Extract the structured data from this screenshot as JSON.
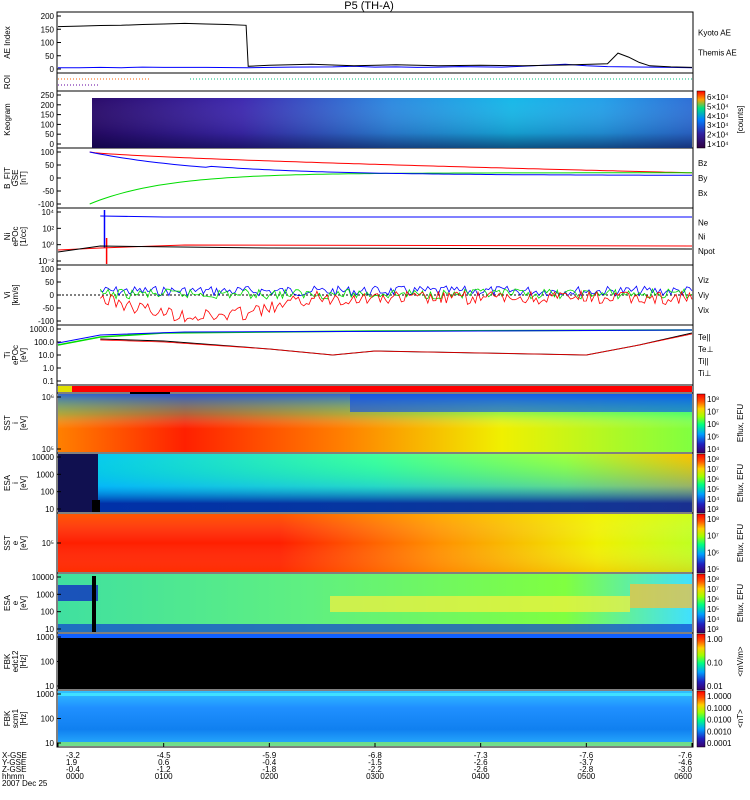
{
  "title": "P5 (TH-A)",
  "colors": {
    "red": "#ff0000",
    "green": "#00dd00",
    "blue": "#0000ff",
    "black": "#000000",
    "orange": "#ff8800"
  },
  "chart_data": [
    {
      "type": "line",
      "panel": "ae",
      "ylabel": "AE Index",
      "yticks": [
        "200",
        "150",
        "100",
        "50",
        "0"
      ],
      "series": [
        {
          "name": "Kyoto AE",
          "color": "#0000ff",
          "x": [
            0,
            2,
            4,
            6,
            8,
            10,
            14,
            18,
            22,
            26,
            28,
            30,
            32,
            34,
            36,
            38,
            40,
            42,
            44,
            46,
            48,
            50,
            52,
            54,
            56,
            58,
            60
          ],
          "values": [
            5,
            5,
            6,
            5,
            7,
            6,
            6,
            5,
            7,
            8,
            10,
            7,
            8,
            6,
            7,
            9,
            8,
            7,
            10,
            14,
            18,
            12,
            9,
            8,
            7,
            6,
            5
          ]
        },
        {
          "name": "Themis AE",
          "color": "#000000",
          "x": [
            0,
            2,
            4,
            6,
            8,
            10,
            12,
            14,
            16,
            17.8,
            18,
            20,
            24,
            28,
            32,
            36,
            40,
            44,
            48,
            52,
            53,
            54,
            55,
            56,
            58,
            60
          ],
          "values": [
            160,
            162,
            164,
            165,
            168,
            170,
            172,
            170,
            168,
            165,
            10,
            14,
            18,
            12,
            16,
            12,
            14,
            12,
            15,
            20,
            60,
            45,
            25,
            12,
            8,
            6
          ]
        }
      ]
    },
    {
      "type": "line",
      "panel": "roi",
      "ylabel": "ROI"
    },
    {
      "type": "heatmap",
      "panel": "keogram",
      "ylabel": "Keogram",
      "yticks": [
        "250",
        "200",
        "150",
        "100",
        "50",
        "0"
      ],
      "colorbar": [
        "6×10⁴",
        "5×10⁴",
        "4×10⁴",
        "3×10⁴",
        "2×10⁴",
        "1×10⁴"
      ],
      "unit": "[counts]"
    },
    {
      "type": "line",
      "panel": "bfit",
      "ylabel": "B_FIT",
      "ylabel2": "GSE",
      "ylabel3": "[nT]",
      "yticks": [
        "100",
        "50",
        "0",
        "-50",
        "-100"
      ],
      "series": [
        {
          "name": "Bz",
          "color": "#ff0000"
        },
        {
          "name": "By",
          "color": "#00dd00"
        },
        {
          "name": "Bx",
          "color": "#0000ff"
        }
      ]
    },
    {
      "type": "line",
      "panel": "ni",
      "ylabel": "Ni",
      "ylabel2": "ePOc",
      "ylabel3": "[1/cc]",
      "yticks": [
        "10⁴",
        "10²",
        "10⁰",
        "10⁻²"
      ],
      "series": [
        {
          "name": "Ne",
          "color": "#ff0000"
        },
        {
          "name": "Ni",
          "color": "#000000"
        },
        {
          "name": "Npot",
          "color": "#0000ff"
        }
      ]
    },
    {
      "type": "line",
      "panel": "vi",
      "ylabel": "Vi",
      "ylabel3": "[km/s]",
      "yticks": [
        "100",
        "50",
        "0",
        "-50",
        "-100"
      ],
      "series": [
        {
          "name": "Viz",
          "color": "#ff0000"
        },
        {
          "name": "Viy",
          "color": "#00dd00"
        },
        {
          "name": "Vix",
          "color": "#0000ff"
        }
      ]
    },
    {
      "type": "line",
      "panel": "ti",
      "ylabel": "Ti",
      "ylabel2": "ePOc",
      "ylabel3": "[eV]",
      "yticks": [
        "1000.0",
        "100.0",
        "10.0",
        "1.0",
        "0.1"
      ],
      "series": [
        {
          "name": "Te||",
          "color": "#000000"
        },
        {
          "name": "Te⊥",
          "color": "#ff0000"
        },
        {
          "name": "Ti||",
          "color": "#00dd00"
        },
        {
          "name": "Ti⊥",
          "color": "#0000ff"
        }
      ]
    },
    {
      "type": "heatmap",
      "panel": "sst_i",
      "ylabel": "SST",
      "ylabel2": "i",
      "ylabel3": "[eV]",
      "yticks": [
        "10⁶",
        "10⁵"
      ],
      "colorbar": [
        "10⁸",
        "10⁷",
        "10⁶",
        "10⁵",
        "10⁴"
      ],
      "unit": "Eflux, EFU"
    },
    {
      "type": "heatmap",
      "panel": "esa_i",
      "ylabel": "ESA",
      "ylabel2": "i",
      "ylabel3": "[eV]",
      "yticks": [
        "10000",
        "1000",
        "100",
        "10"
      ],
      "colorbar": [
        "10⁸",
        "10⁷",
        "10⁶",
        "10⁵",
        "10⁴",
        "10³"
      ],
      "unit": "Eflux, EFU"
    },
    {
      "type": "heatmap",
      "panel": "sst_e",
      "ylabel": "SST",
      "ylabel2": "e",
      "ylabel3": "[eV]",
      "yticks": [
        "10⁵"
      ],
      "colorbar": [
        "10⁸",
        "10⁷",
        "10⁶",
        "10⁵"
      ],
      "unit": "Eflux, EFU"
    },
    {
      "type": "heatmap",
      "panel": "esa_e",
      "ylabel": "ESA",
      "ylabel2": "e",
      "ylabel3": "[eV]",
      "yticks": [
        "10000",
        "1000",
        "100",
        "10"
      ],
      "colorbar": [
        "10⁸",
        "10⁷",
        "10⁶",
        "10⁵",
        "10⁴",
        "10³"
      ],
      "unit": "Eflux, EFU"
    },
    {
      "type": "heatmap",
      "panel": "fbk1",
      "ylabel": "FBK",
      "ylabel2": "edc12",
      "ylabel3": "[Hz]",
      "yticks": [
        "1000",
        "100",
        "10"
      ],
      "colorbar": [
        "1.00",
        "0.10",
        "0.01"
      ],
      "unit": "<mV/m>"
    },
    {
      "type": "heatmap",
      "panel": "fbk2",
      "ylabel": "FBK",
      "ylabel2": "scm1",
      "ylabel3": "[Hz]",
      "yticks": [
        "1000",
        "100",
        "10"
      ],
      "colorbar": [
        "1.0000",
        "0.1000",
        "0.0100",
        "0.0010",
        "0.0001"
      ],
      "unit": "<nT>"
    }
  ],
  "xaxis": {
    "row_labels": [
      "X-GSE",
      "Y-GSE",
      "Z-GSE",
      "hhmm",
      "2007 Dec 25"
    ],
    "ticks": [
      {
        "x": "-3.2",
        "y": "1.9",
        "z": "-0.4",
        "t": "0000"
      },
      {
        "x": "-4.5",
        "y": "0.6",
        "z": "-1.2",
        "t": "0100"
      },
      {
        "x": "-5.9",
        "y": "-0.4",
        "z": "-1.8",
        "t": "0200"
      },
      {
        "x": "-6.8",
        "y": "-1.5",
        "z": "-2.2",
        "t": "0300"
      },
      {
        "x": "-7.3",
        "y": "-2.6",
        "z": "-2.6",
        "t": "0400"
      },
      {
        "x": "-7.6",
        "y": "-3.7",
        "z": "-2.8",
        "t": "0500"
      },
      {
        "x": "-7.6",
        "y": "-4.6",
        "z": "-3.0",
        "t": "0600"
      }
    ]
  }
}
